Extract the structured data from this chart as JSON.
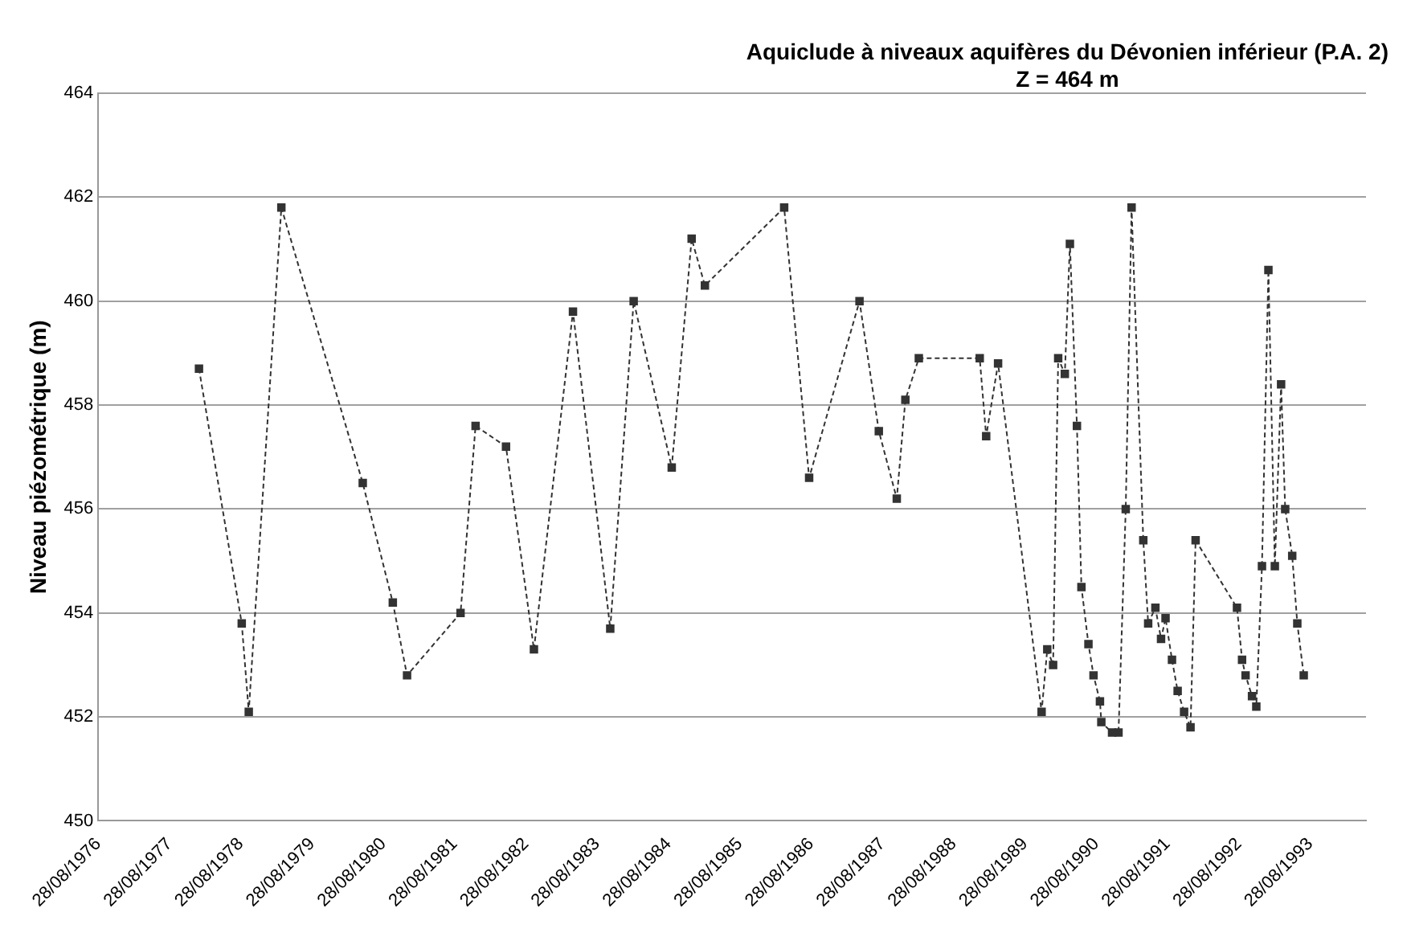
{
  "chart_data": {
    "type": "line",
    "title": "Aquiclude à niveaux aquifères du Dévonien inférieur (P.A. 2)",
    "subtitle": "Z = 464 m",
    "ylabel": "Niveau piézométrique (m)",
    "x": [
      "1978-01-26",
      "1978-09-02",
      "1978-10-08",
      "1979-03-24",
      "1980-05-14",
      "1980-10-15",
      "1980-12-27",
      "1981-09-27",
      "1981-12-13",
      "1982-05-18",
      "1982-10-08",
      "1983-04-26",
      "1983-11-03",
      "1984-03-02",
      "1984-09-13",
      "1984-12-24",
      "1985-03-02",
      "1986-04-12",
      "1986-08-18",
      "1987-05-03",
      "1987-08-10",
      "1987-11-10",
      "1987-12-24",
      "1988-03-02",
      "1989-01-08",
      "1989-02-10",
      "1989-04-12",
      "1989-11-21",
      "1989-12-20",
      "1990-01-19",
      "1990-02-14",
      "1990-03-20",
      "1990-04-15",
      "1990-05-21",
      "1990-06-13",
      "1990-07-19",
      "1990-08-14",
      "1990-09-16",
      "1990-09-23",
      "1990-11-17",
      "1990-12-20",
      "1991-01-26",
      "1991-02-25",
      "1991-04-26",
      "1991-05-21",
      "1991-06-27",
      "1991-07-26",
      "1991-08-18",
      "1991-09-20",
      "1991-10-19",
      "1991-11-21",
      "1991-12-24",
      "1992-01-19",
      "1992-08-18",
      "1992-09-13",
      "1992-10-01",
      "1992-11-03",
      "1992-11-25",
      "1992-12-24",
      "1993-01-26",
      "1993-02-28",
      "1993-04-01",
      "1993-04-22",
      "1993-05-28",
      "1993-06-23",
      "1993-07-26"
    ],
    "series": [
      {
        "color": "#333333",
        "values": [
          458.7,
          453.8,
          452.1,
          461.8,
          456.5,
          454.2,
          452.8,
          454.0,
          457.6,
          457.2,
          453.3,
          459.8,
          453.7,
          460.0,
          456.8,
          461.2,
          460.3,
          461.8,
          456.6,
          460.0,
          457.5,
          456.2,
          458.1,
          458.9,
          458.9,
          457.4,
          458.8,
          452.1,
          453.3,
          453.0,
          458.9,
          458.6,
          461.1,
          457.6,
          454.5,
          453.4,
          452.8,
          452.3,
          451.9,
          451.7,
          451.7,
          456.0,
          461.8,
          455.4,
          453.8,
          454.1,
          453.5,
          453.9,
          453.1,
          452.5,
          452.1,
          451.8,
          455.4,
          454.1,
          453.1,
          452.8,
          452.4,
          452.2,
          454.9,
          460.6,
          454.9,
          458.4,
          456.0,
          455.1,
          453.8,
          452.8
        ]
      }
    ],
    "xlim": [
      "1976-08-28",
      "1994-06-10"
    ],
    "xticks": [
      {
        "value": "1976-08-28",
        "label": "28/08/1976"
      },
      {
        "value": "1977-08-28",
        "label": "28/08/1977"
      },
      {
        "value": "1978-08-28",
        "label": "28/08/1978"
      },
      {
        "value": "1979-08-28",
        "label": "28/08/1979"
      },
      {
        "value": "1980-08-28",
        "label": "28/08/1980"
      },
      {
        "value": "1981-08-28",
        "label": "28/08/1981"
      },
      {
        "value": "1982-08-28",
        "label": "28/08/1982"
      },
      {
        "value": "1983-08-28",
        "label": "28/08/1983"
      },
      {
        "value": "1984-08-28",
        "label": "28/08/1984"
      },
      {
        "value": "1985-08-28",
        "label": "28/08/1985"
      },
      {
        "value": "1986-08-28",
        "label": "28/08/1986"
      },
      {
        "value": "1987-08-28",
        "label": "28/08/1987"
      },
      {
        "value": "1988-08-28",
        "label": "28/08/1988"
      },
      {
        "value": "1989-08-28",
        "label": "28/08/1989"
      },
      {
        "value": "1990-08-28",
        "label": "28/08/1990"
      },
      {
        "value": "1991-08-28",
        "label": "28/08/1991"
      },
      {
        "value": "1992-08-28",
        "label": "28/08/1992"
      },
      {
        "value": "1993-08-28",
        "label": "28/08/1993"
      }
    ],
    "ylim": [
      450,
      464
    ],
    "yticks": [
      450,
      452,
      454,
      456,
      458,
      460,
      462,
      464
    ],
    "grid": "y",
    "legend": false,
    "marker": "square",
    "line_style": "dashed"
  }
}
